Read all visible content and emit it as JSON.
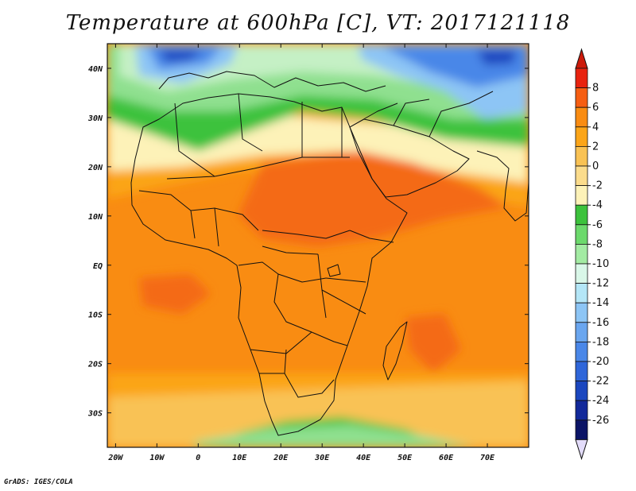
{
  "title": "Temperature at 600hPa [C], VT: 2017121118",
  "credit": "GrADS: IGES/COLA",
  "map": {
    "lon_range": [
      -22,
      80
    ],
    "lat_range": [
      -37,
      45
    ],
    "lon_ticks": [
      {
        "value": -20,
        "label": "20W"
      },
      {
        "value": -10,
        "label": "10W"
      },
      {
        "value": 0,
        "label": "0"
      },
      {
        "value": 10,
        "label": "10E"
      },
      {
        "value": 20,
        "label": "20E"
      },
      {
        "value": 30,
        "label": "30E"
      },
      {
        "value": 40,
        "label": "40E"
      },
      {
        "value": 50,
        "label": "50E"
      },
      {
        "value": 60,
        "label": "60E"
      },
      {
        "value": 70,
        "label": "70E"
      }
    ],
    "lat_ticks": [
      {
        "value": 40,
        "label": "40N"
      },
      {
        "value": 30,
        "label": "30N"
      },
      {
        "value": 20,
        "label": "20N"
      },
      {
        "value": 10,
        "label": "10N"
      },
      {
        "value": 0,
        "label": "EQ"
      },
      {
        "value": -10,
        "label": "10S"
      },
      {
        "value": -20,
        "label": "20S"
      },
      {
        "value": -30,
        "label": "30S"
      }
    ]
  },
  "colorbar": {
    "labels": [
      "8",
      "6",
      "4",
      "2",
      "0",
      "-2",
      "-4",
      "-6",
      "-8",
      "-10",
      "-12",
      "-14",
      "-16",
      "-18",
      "-20",
      "-22",
      "-24",
      "-26"
    ],
    "colors": [
      "#e8230f",
      "#f65e12",
      "#f98c12",
      "#fba519",
      "#f9c254",
      "#fbdc8c",
      "#fdf2b8",
      "#3cc23c",
      "#6cd96c",
      "#a3eba3",
      "#d9f7e8",
      "#b4e6f7",
      "#8dc5f5",
      "#6aa6ef",
      "#4a87e8",
      "#2f66d9",
      "#1b47bf",
      "#12299a",
      "#0b1466"
    ],
    "max_cap_color": "#cc1a0a",
    "min_cap_color": "#e3dcfa"
  },
  "field_colors": {
    "hot": "#f46a14",
    "warm": "#f98c12",
    "mild": "#fba519",
    "cool": "#f9c254",
    "pale": "#fbdc8c",
    "cream": "#fdf2b8",
    "green": "#3cc23c",
    "lightgreen": "#8fe08f",
    "mint": "#c5f0c5",
    "ice": "#b4e6f7",
    "sky": "#8dc5f5",
    "blue": "#4a87e8",
    "navy": "#1b47bf"
  }
}
